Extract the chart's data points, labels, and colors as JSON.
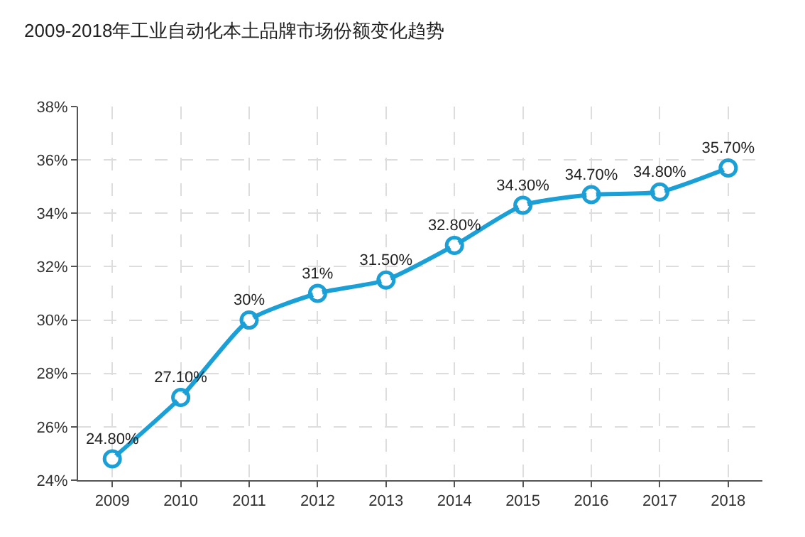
{
  "chart_data": {
    "type": "line",
    "title": "2009-2018年工业自动化本土品牌市场份额变化趋势",
    "categories": [
      "2009",
      "2010",
      "2011",
      "2012",
      "2013",
      "2014",
      "2015",
      "2016",
      "2017",
      "2018"
    ],
    "values": [
      24.8,
      27.1,
      30,
      31,
      31.5,
      32.8,
      34.3,
      34.7,
      34.8,
      35.7
    ],
    "value_labels": [
      "24.80%",
      "27.10%",
      "30%",
      "31%",
      "31.50%",
      "32.80%",
      "34.30%",
      "34.70%",
      "34.80%",
      "35.70%"
    ],
    "color": "#1a9fd6",
    "ylim": [
      24,
      38
    ],
    "yticks": [
      {
        "value": 24,
        "label": "24%"
      },
      {
        "value": 26,
        "label": "26%"
      },
      {
        "value": 28,
        "label": "28%"
      },
      {
        "value": 30,
        "label": "30%"
      },
      {
        "value": 32,
        "label": "32%"
      },
      {
        "value": 34,
        "label": "34%"
      },
      {
        "value": 36,
        "label": "36%"
      },
      {
        "value": 38,
        "label": "38%"
      }
    ],
    "grid": true,
    "marker": "circle",
    "line_style": "solid"
  }
}
